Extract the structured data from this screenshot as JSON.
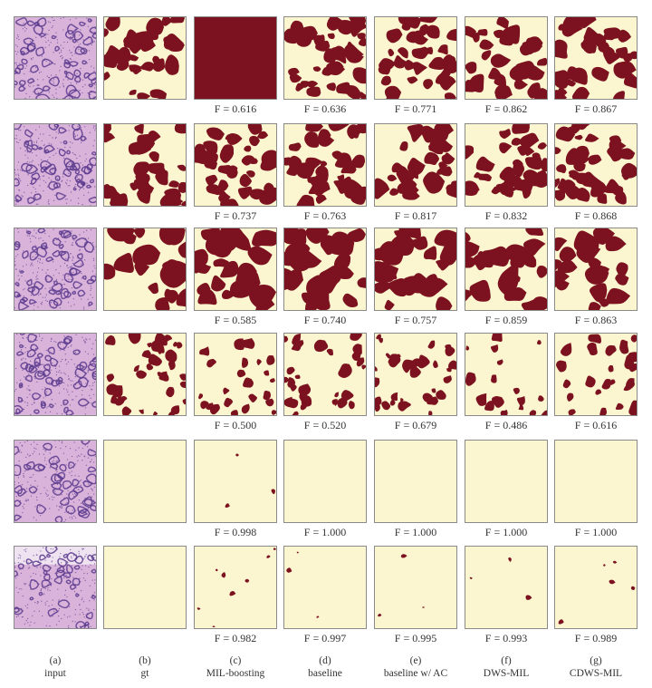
{
  "colors": {
    "mask_positive": "#7c1220",
    "mask_negative": "#fbf6cf",
    "tissue_base": "#d9b3d9",
    "tissue_nuclei": "#5b3a8e",
    "tissue_light": "#efe3f1"
  },
  "columns": [
    {
      "letter": "(a)",
      "label": "input"
    },
    {
      "letter": "(b)",
      "label": "gt"
    },
    {
      "letter": "(c)",
      "label": "MIL-boosting"
    },
    {
      "letter": "(d)",
      "label": "baseline"
    },
    {
      "letter": "(e)",
      "label": "baseline w/ AC"
    },
    {
      "letter": "(f)",
      "label": "DWS-MIL"
    },
    {
      "letter": "(g)",
      "label": "CDWS-MIL"
    }
  ],
  "rows": [
    {
      "pattern": "wavy",
      "coverage": [
        0.45,
        1.0,
        0.55,
        0.5,
        0.45,
        0.45
      ],
      "f_scores": [
        "F = 0.616",
        "F = 0.636",
        "F = 0.771",
        "F = 0.862",
        "F = 0.867"
      ]
    },
    {
      "pattern": "wavy2",
      "coverage": [
        0.5,
        0.5,
        0.5,
        0.5,
        0.5,
        0.5
      ],
      "f_scores": [
        "F = 0.737",
        "F = 0.763",
        "F = 0.817",
        "F = 0.832",
        "F = 0.868"
      ]
    },
    {
      "pattern": "stripe",
      "coverage": [
        0.45,
        0.6,
        0.6,
        0.6,
        0.5,
        0.5
      ],
      "f_scores": [
        "F = 0.585",
        "F = 0.740",
        "F = 0.757",
        "F = 0.859",
        "F = 0.863"
      ]
    },
    {
      "pattern": "diag",
      "coverage": [
        0.4,
        0.25,
        0.35,
        0.35,
        0.2,
        0.25
      ],
      "f_scores": [
        "F = 0.500",
        "F = 0.520",
        "F = 0.679",
        "F = 0.486",
        "F = 0.616"
      ]
    },
    {
      "pattern": "cells",
      "coverage": [
        0.0,
        0.01,
        0.0,
        0.0,
        0.0,
        0.0
      ],
      "f_scores": [
        "F = 0.998",
        "F = 1.000",
        "F = 1.000",
        "F = 1.000",
        "F = 1.000"
      ]
    },
    {
      "pattern": "crypt",
      "coverage": [
        0.0,
        0.03,
        0.01,
        0.01,
        0.01,
        0.02
      ],
      "f_scores": [
        "F = 0.982",
        "F = 0.997",
        "F = 0.995",
        "F = 0.993",
        "F = 0.989"
      ]
    }
  ]
}
